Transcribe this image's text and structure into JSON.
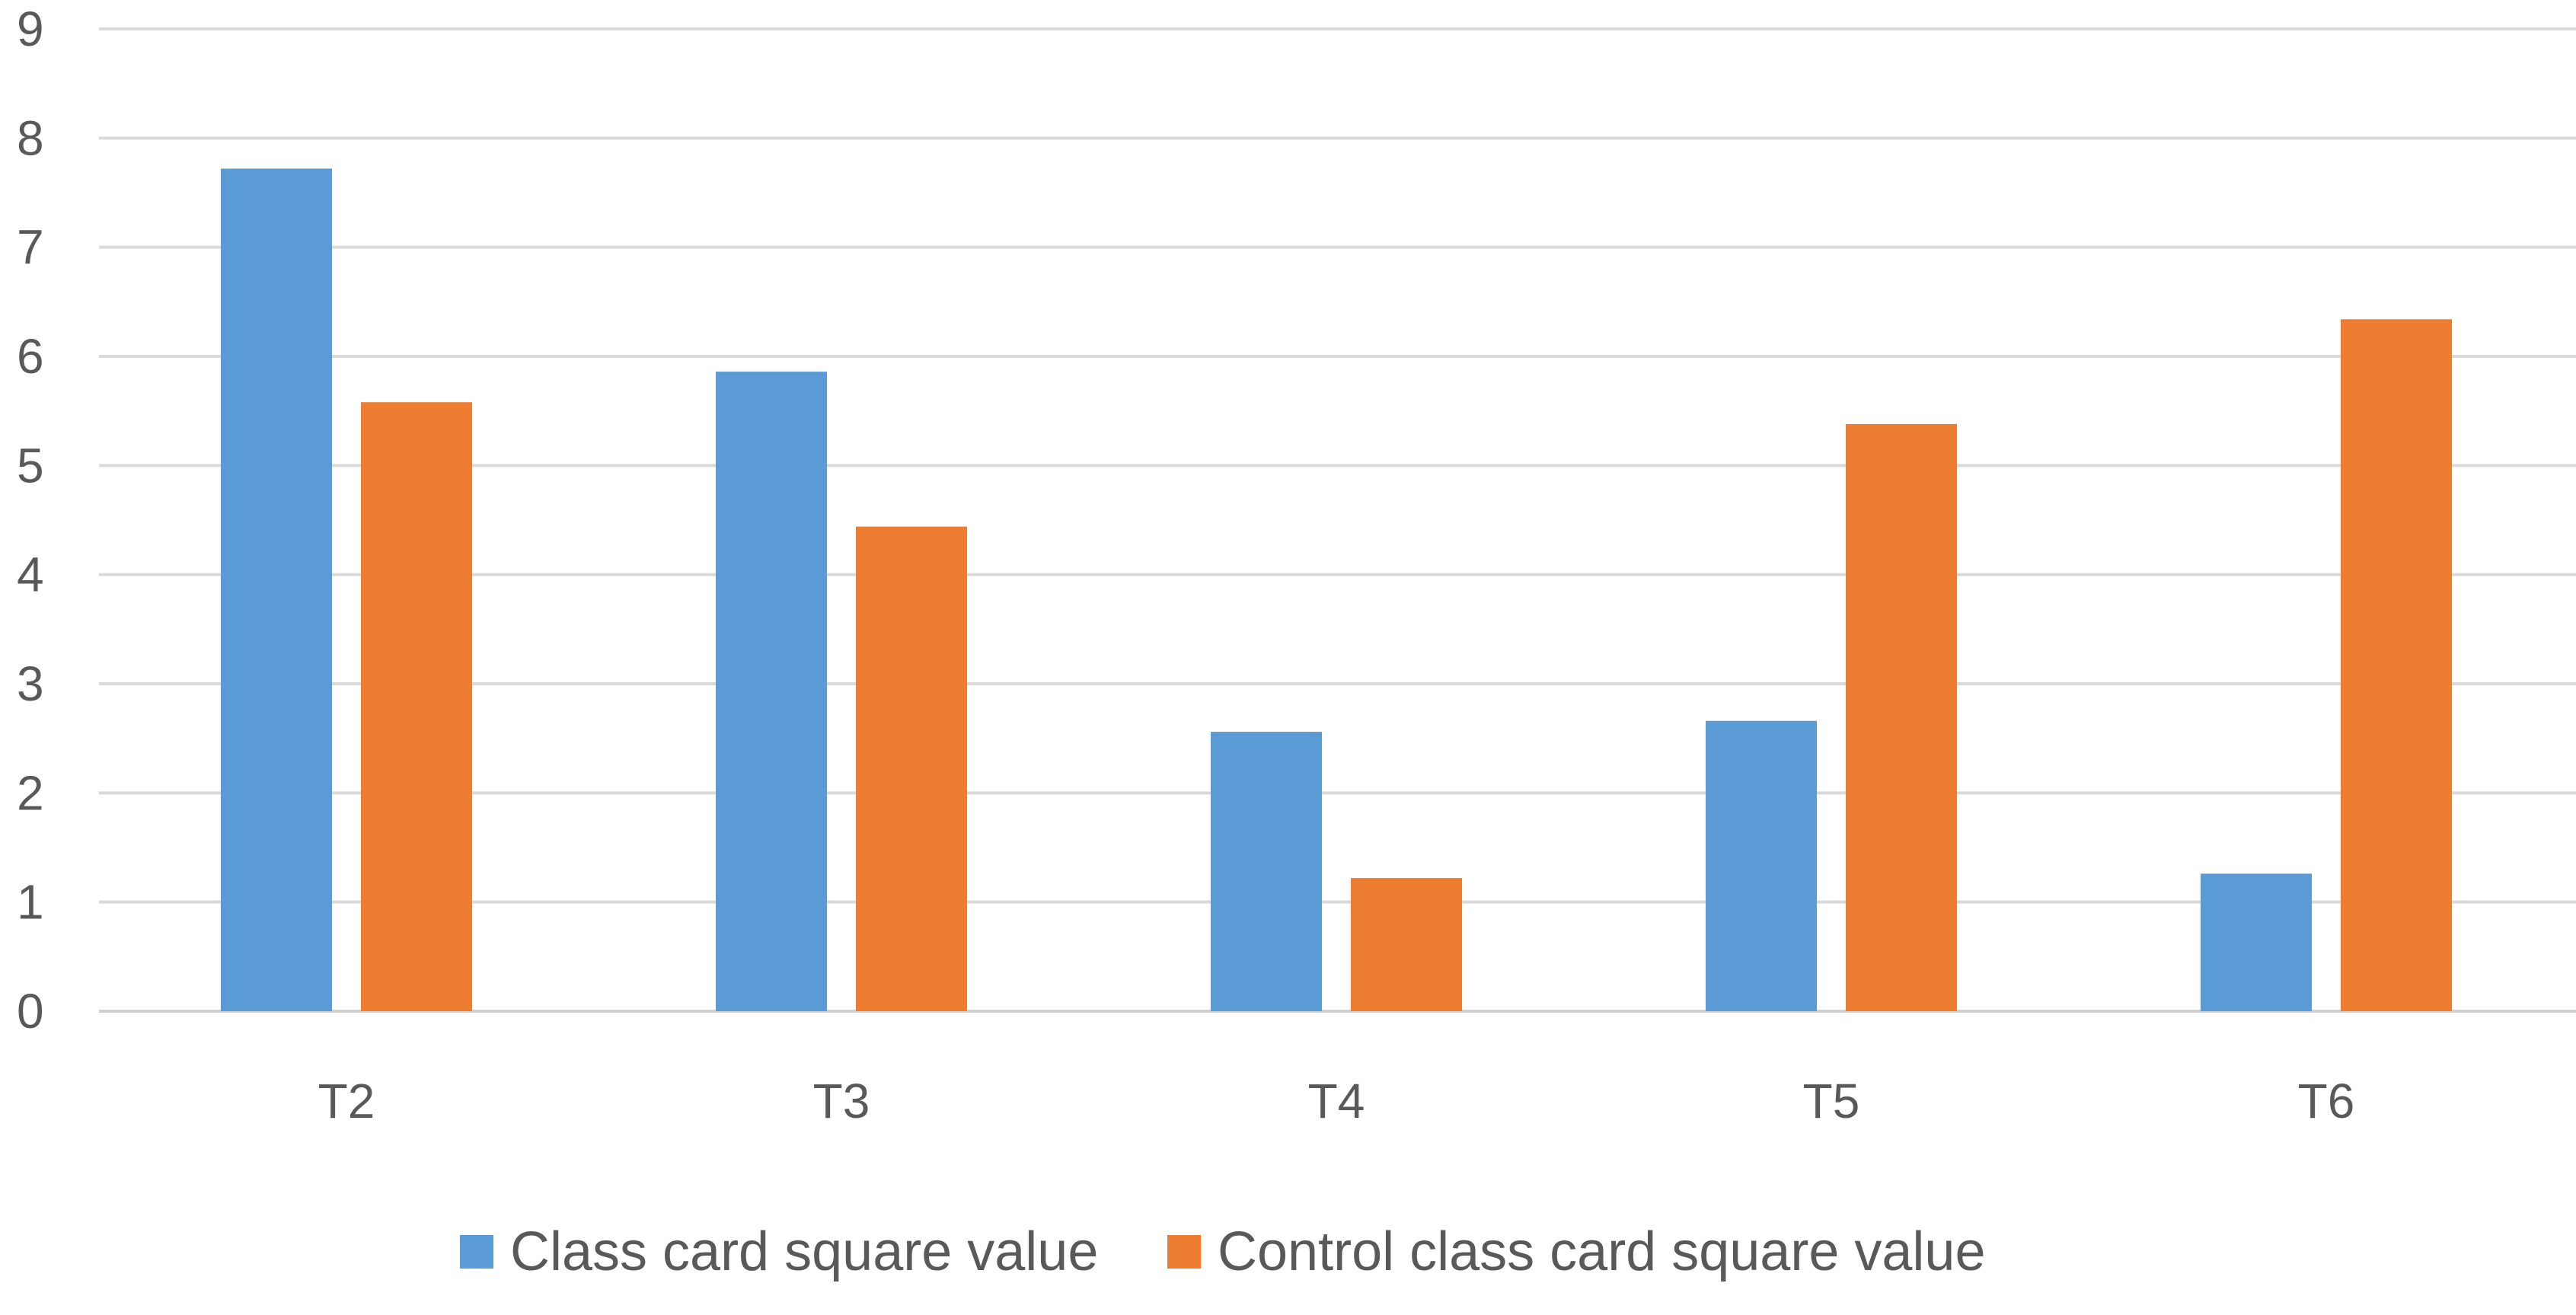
{
  "chart_data": {
    "type": "bar",
    "title": "",
    "xlabel": "",
    "ylabel": "",
    "categories": [
      "T2",
      "T3",
      "T4",
      "T5",
      "T6"
    ],
    "series": [
      {
        "name": "Class card square value",
        "color": "#5b9bd5",
        "values": [
          7.72,
          5.86,
          2.56,
          2.66,
          1.26
        ]
      },
      {
        "name": "Control class card square value",
        "color": "#ed7d31",
        "values": [
          5.58,
          4.44,
          1.22,
          5.38,
          6.34
        ]
      }
    ],
    "ylim": [
      0,
      9
    ],
    "yticks": [
      0,
      1,
      2,
      3,
      4,
      5,
      6,
      7,
      8,
      9
    ],
    "grid": true,
    "legend_position": "bottom"
  }
}
